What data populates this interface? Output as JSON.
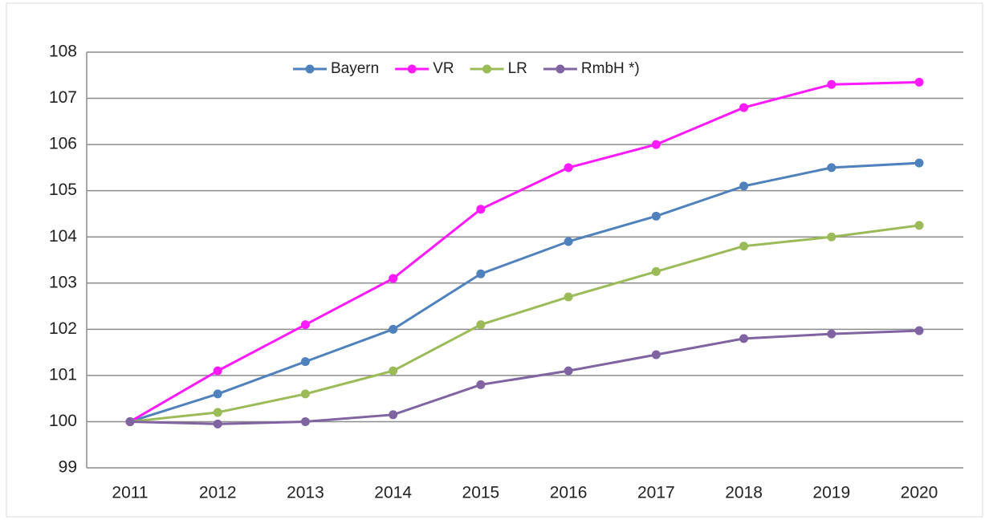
{
  "chart_data": {
    "type": "line",
    "categories": [
      "2011",
      "2012",
      "2013",
      "2014",
      "2015",
      "2016",
      "2017",
      "2018",
      "2019",
      "2020"
    ],
    "series": [
      {
        "name": "Bayern",
        "color": "#4f81bd",
        "values": [
          100,
          100.6,
          101.3,
          102.0,
          103.2,
          103.9,
          104.45,
          105.1,
          105.5,
          105.6
        ]
      },
      {
        "name": "VR",
        "color": "#ff1aff",
        "values": [
          100,
          101.1,
          102.1,
          103.1,
          104.6,
          105.5,
          106.0,
          106.8,
          107.3,
          107.35
        ]
      },
      {
        "name": "LR",
        "color": "#9bbb59",
        "values": [
          100,
          100.2,
          100.6,
          101.1,
          102.1,
          102.7,
          103.25,
          103.8,
          104.0,
          104.25
        ]
      },
      {
        "name": "RmbH *)",
        "color": "#8064a2",
        "values": [
          100,
          99.95,
          100.0,
          100.15,
          100.8,
          101.1,
          101.45,
          101.8,
          101.9,
          101.97
        ]
      }
    ],
    "ylim": [
      99,
      108
    ],
    "yticks": [
      99,
      100,
      101,
      102,
      103,
      104,
      105,
      106,
      107,
      108
    ],
    "grid": true,
    "legend": "top"
  }
}
